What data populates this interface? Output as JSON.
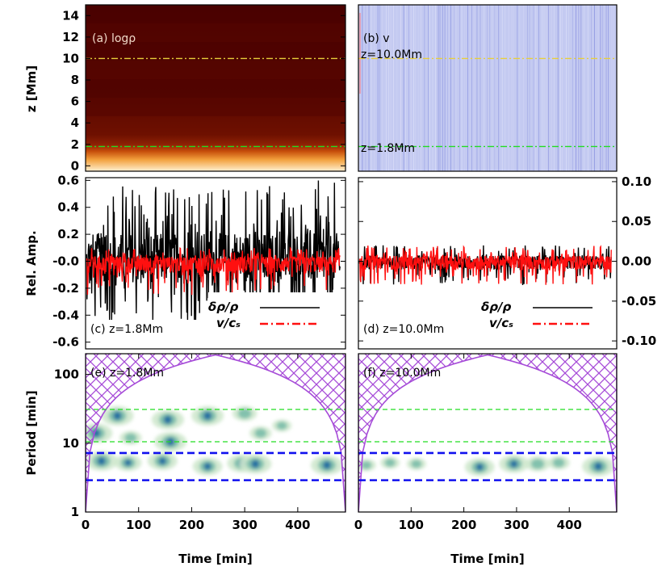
{
  "figure": {
    "xlabel": "Time [min]",
    "x_ticks": [
      "0",
      "100",
      "200",
      "300",
      "400"
    ],
    "xlim": [
      0,
      490
    ]
  },
  "colors": {
    "black": "#000000",
    "red": "#ff1010",
    "green": "#22dd22",
    "yellow": "#e8cf3a",
    "blue": "#1010ee",
    "purple": "#a64bd8",
    "density_dark": "#4a0000",
    "velocity_bg": "#c4caf1"
  },
  "chart_data": [
    {
      "id": "a",
      "type": "heatmap",
      "label": "(a) logρ",
      "ylabel": "z [Mm]",
      "ylim": [
        -0.5,
        15
      ],
      "y_ticks": [
        "0",
        "2",
        "4",
        "6",
        "8",
        "10",
        "12",
        "14"
      ],
      "y_tick_values": [
        0,
        2,
        4,
        6,
        8,
        10,
        12,
        14
      ],
      "hlines": [
        {
          "z": 10.0,
          "color": "yellow"
        },
        {
          "z": 1.8,
          "color": "green"
        }
      ]
    },
    {
      "id": "b",
      "type": "heatmap",
      "label": "(b) v",
      "ylim": [
        -0.5,
        15
      ],
      "annotations": [
        "z=10.0Mm",
        "z=1.8Mm"
      ],
      "hlines": [
        {
          "z": 10.0,
          "color": "yellow"
        },
        {
          "z": 1.8,
          "color": "green"
        }
      ]
    },
    {
      "id": "c",
      "type": "line",
      "label": "(c) z=1.8Mm",
      "ylabel": "Rel. Amp.",
      "ylim": [
        -0.65,
        0.62
      ],
      "y_ticks": [
        "0.6",
        "0.4",
        "0.2",
        "-0.0",
        "-0.2",
        "-0.4",
        "-0.6"
      ],
      "y_tick_values": [
        0.6,
        0.4,
        0.2,
        0.0,
        -0.2,
        -0.4,
        -0.6
      ],
      "series": [
        {
          "name": "δρ/ρ",
          "style": "solid",
          "color": "black",
          "amplitude_up": 0.6,
          "amplitude_down": 0.45
        },
        {
          "name": "v/cₛ",
          "style": "dash-dot",
          "color": "red",
          "amplitude_up": 0.1,
          "amplitude_down": 0.25
        }
      ],
      "legend": [
        "δρ/ρ",
        "v/cₛ"
      ]
    },
    {
      "id": "d",
      "type": "line",
      "label": "(d) z=10.0Mm",
      "ylim": [
        -0.11,
        0.105
      ],
      "y_ticks": [
        "0.10",
        "0.05",
        "0.00",
        "-0.05",
        "-0.10"
      ],
      "y_tick_values": [
        0.1,
        0.05,
        0.0,
        -0.05,
        -0.1
      ],
      "series": [
        {
          "name": "δρ/ρ",
          "style": "solid",
          "color": "black",
          "amplitude_up": 0.02,
          "amplitude_down": 0.03
        },
        {
          "name": "v/cₛ",
          "style": "dash-dot",
          "color": "red",
          "amplitude_up": 0.02,
          "amplitude_down": 0.03
        }
      ],
      "legend": [
        "δρ/ρ",
        "v/cₛ"
      ]
    },
    {
      "id": "e",
      "type": "heatmap",
      "label": "(e) z=1.8Mm",
      "ylabel": "Period [min]",
      "yscale": "log",
      "ylim": [
        1,
        200
      ],
      "y_ticks": [
        "1",
        "10",
        "100"
      ],
      "y_tick_values": [
        1,
        10,
        100
      ],
      "hlines": [
        {
          "period": 31,
          "color": "green",
          "style": "dashed"
        },
        {
          "period": 10.5,
          "color": "green",
          "style": "dashed"
        },
        {
          "period": 7.2,
          "color": "blue",
          "style": "dashed"
        },
        {
          "period": 2.9,
          "color": "blue",
          "style": "dashed"
        }
      ],
      "power_blobs": [
        {
          "t": 60,
          "p": 25,
          "s": 1.0
        },
        {
          "t": 155,
          "p": 22,
          "s": 1.0
        },
        {
          "t": 230,
          "p": 25,
          "s": 1.0
        },
        {
          "t": 300,
          "p": 27,
          "s": 0.7
        },
        {
          "t": 20,
          "p": 14,
          "s": 1.0
        },
        {
          "t": 160,
          "p": 10.5,
          "s": 1.0
        },
        {
          "t": 85,
          "p": 12,
          "s": 0.6
        },
        {
          "t": 330,
          "p": 14,
          "s": 0.6
        },
        {
          "t": 370,
          "p": 18,
          "s": 0.5
        },
        {
          "t": 30,
          "p": 5.5,
          "s": 1.0
        },
        {
          "t": 80,
          "p": 5.2,
          "s": 0.8
        },
        {
          "t": 145,
          "p": 5.5,
          "s": 0.9
        },
        {
          "t": 230,
          "p": 4.6,
          "s": 0.9
        },
        {
          "t": 295,
          "p": 5.1,
          "s": 0.9
        },
        {
          "t": 320,
          "p": 5.0,
          "s": 1.0
        },
        {
          "t": 455,
          "p": 4.8,
          "s": 1.0
        }
      ]
    },
    {
      "id": "f",
      "type": "heatmap",
      "label": "(f) z=10.0Mm",
      "yscale": "log",
      "ylim": [
        1,
        200
      ],
      "hlines": [
        {
          "period": 31,
          "color": "green",
          "style": "dashed"
        },
        {
          "period": 10.5,
          "color": "green",
          "style": "dashed"
        },
        {
          "period": 7.2,
          "color": "blue",
          "style": "dashed"
        },
        {
          "period": 2.9,
          "color": "blue",
          "style": "dashed"
        }
      ],
      "power_blobs": [
        {
          "t": 15,
          "p": 4.8,
          "s": 0.5
        },
        {
          "t": 60,
          "p": 5.2,
          "s": 0.5
        },
        {
          "t": 110,
          "p": 5.0,
          "s": 0.5
        },
        {
          "t": 230,
          "p": 4.5,
          "s": 0.9
        },
        {
          "t": 295,
          "p": 5.0,
          "s": 0.9
        },
        {
          "t": 340,
          "p": 5.0,
          "s": 0.7
        },
        {
          "t": 380,
          "p": 5.2,
          "s": 0.6
        },
        {
          "t": 455,
          "p": 4.6,
          "s": 1.0
        }
      ]
    }
  ]
}
